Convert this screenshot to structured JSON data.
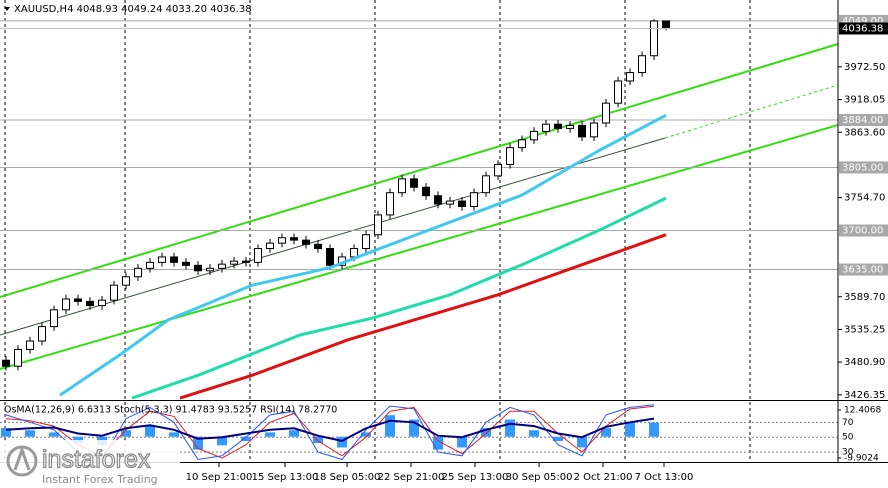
{
  "chart_data": [
    {
      "type": "candlestick",
      "title": "XAUUSD,H4  4048.93 4049.24 4033.20 4036.38",
      "xlim": [
        -0.5,
        69.33
      ],
      "xticks": [
        {
          "value": 17.75,
          "label": "10 Sep 21:00"
        },
        {
          "value": 23.25,
          "label": "15 Sep 13:00"
        },
        {
          "value": 28.42,
          "label": "18 Sep 05:00"
        },
        {
          "value": 33.75,
          "label": "22 Sep 21:00"
        },
        {
          "value": 39.08,
          "label": "25 Sep 13:00"
        },
        {
          "value": 44.42,
          "label": "30 Sep 05:00"
        },
        {
          "value": 49.75,
          "label": "2 Oct 21:00"
        },
        {
          "value": 54.83,
          "label": "7 Oct 13:00"
        }
      ],
      "ylim": [
        3417.8,
        4083.8
      ],
      "yticks": [
        {
          "value": 3972.5,
          "label": "3972.50"
        },
        3918.05,
        {
          "value": 3863.6,
          "label": "3863.60"
        },
        {
          "value": 3754.7,
          "label": "3754.70"
        },
        {
          "value": 3589.7,
          "label": "3589.70"
        },
        3535.25,
        {
          "value": 3480.9,
          "label": "3480.90"
        },
        3426.35
      ],
      "levels": [
        {
          "value": 4049,
          "label": "4049.00"
        },
        {
          "value": 3884,
          "label": "3884.00"
        },
        {
          "value": 3805,
          "label": "3805.00"
        },
        {
          "value": 3700,
          "label": "3700.00"
        },
        {
          "value": 3635,
          "label": "3635.00"
        }
      ],
      "level_color": "#a8a8a8",
      "current_price": 4036.38,
      "up_color": "#ffffff",
      "down_color": "#000000",
      "open": [
        3484,
        3474,
        3502,
        3516,
        3540,
        3568,
        3586,
        3582,
        3575,
        3584,
        3609,
        3623,
        3637,
        3647,
        3656,
        3647,
        3642,
        3633,
        3637,
        3644,
        3649,
        3647,
        3670,
        3679,
        3688,
        3684,
        3677,
        3670,
        3642,
        3656,
        3670,
        3693,
        3726,
        3763,
        3786,
        3772,
        3758,
        3744,
        3749,
        3740,
        3763,
        3791,
        3810,
        3838,
        3851,
        3865,
        3877,
        3870,
        3875,
        3856,
        3879,
        3912,
        3949,
        3963,
        3991,
        4048.93
      ],
      "high": [
        3491,
        3509,
        3523,
        3547,
        3575,
        3593,
        3593,
        3589,
        3591,
        3616,
        3630,
        3644,
        3654,
        3663,
        3663,
        3654,
        3649,
        3644,
        3651,
        3656,
        3656,
        3677,
        3686,
        3695,
        3695,
        3691,
        3684,
        3677,
        3663,
        3677,
        3700,
        3733,
        3770,
        3793,
        3793,
        3779,
        3765,
        3756,
        3756,
        3770,
        3798,
        3817,
        3845,
        3858,
        3872,
        3884,
        3884,
        3882,
        3882,
        3886,
        3919,
        3956,
        3970,
        3998,
        4052,
        4049.24
      ],
      "low": [
        3467,
        3467,
        3495,
        3509,
        3533,
        3561,
        3575,
        3568,
        3568,
        3577,
        3602,
        3616,
        3630,
        3640,
        3640,
        3635,
        3626,
        3626,
        3630,
        3637,
        3640,
        3640,
        3663,
        3672,
        3677,
        3670,
        3663,
        3635,
        3635,
        3649,
        3663,
        3686,
        3719,
        3756,
        3765,
        3751,
        3737,
        3737,
        3733,
        3733,
        3756,
        3784,
        3803,
        3831,
        3844,
        3858,
        3863,
        3863,
        3849,
        3849,
        3872,
        3905,
        3942,
        3956,
        3984,
        4033.2
      ],
      "close": [
        3474,
        3502,
        3516,
        3540,
        3568,
        3586,
        3582,
        3575,
        3584,
        3609,
        3623,
        3637,
        3647,
        3656,
        3647,
        3642,
        3633,
        3637,
        3644,
        3649,
        3647,
        3670,
        3679,
        3688,
        3684,
        3677,
        3670,
        3642,
        3656,
        3670,
        3693,
        3726,
        3763,
        3786,
        3772,
        3758,
        3744,
        3749,
        3740,
        3763,
        3791,
        3810,
        3838,
        3851,
        3865,
        3877,
        3870,
        3875,
        3856,
        3879,
        3912,
        3949,
        3963,
        3991,
        4048.93,
        4036.38
      ],
      "moving_averages": [
        {
          "color": "#40c8f0",
          "x": [
            4.5,
            9.5,
            13.5,
            20.5,
            27,
            33,
            37,
            43,
            49.5,
            55
          ],
          "values": [
            3426,
            3493,
            3551,
            3609,
            3638,
            3684,
            3714,
            3759,
            3834,
            3892
          ]
        },
        {
          "color": "#20dca8",
          "x": [
            10.5,
            16,
            24.5,
            30.5,
            37,
            43,
            49.5,
            55
          ],
          "values": [
            3421,
            3459,
            3526,
            3554,
            3593,
            3643,
            3701,
            3754
          ]
        },
        {
          "color": "#e01010",
          "x": [
            14.5,
            20.5,
            28.5,
            34.5,
            41,
            48,
            55
          ],
          "values": [
            3421,
            3459,
            3518,
            3554,
            3593,
            3643,
            3693
          ]
        }
      ],
      "trendlines": [
        {
          "color": "#33dd11",
          "style": "solid",
          "x": [
            -0.5,
            69.33
          ],
          "values": [
            3589.3,
            4010.5
          ]
        },
        {
          "color": "#33dd11",
          "style": "solid",
          "x": [
            -0.5,
            69.33
          ],
          "values": [
            3469.4,
            3875.7
          ]
        },
        {
          "color": "#2f4f2f",
          "style": "solid",
          "x": [
            -0.5,
            54.92
          ],
          "values": [
            3526,
            3854
          ]
        },
        {
          "color": "#33dd11",
          "style": "dashed",
          "x": [
            54.92,
            69.33
          ],
          "values": [
            3854,
            3942.3
          ]
        }
      ]
    },
    {
      "type": "oscillator",
      "title": "OsMA(12,26,9) 6.6313 Stoch(5,3,3) 91.4783 93.5257 RSI(14) 78.2770",
      "xlim": [
        -0.5,
        69.33
      ],
      "ylim": [
        16.7,
        100
      ],
      "yticks": [
        30,
        50,
        70
      ],
      "y2lim": [
        -11.76,
        17.06
      ],
      "y2ticks": [
        12.4068,
        -9.9024
      ],
      "series": [
        {
          "type": "bar",
          "axis": "y2",
          "color": "#3399ff",
          "x": [
            0,
            2,
            4,
            6,
            8,
            10,
            12,
            14,
            16,
            18,
            20,
            22,
            24,
            26,
            28,
            30,
            32,
            34,
            36,
            38,
            40,
            42,
            44,
            46,
            48,
            50,
            52,
            54
          ],
          "values": [
            4,
            3,
            2,
            -3,
            -4,
            3,
            5,
            2,
            -6,
            -4,
            -2,
            2,
            3,
            -3,
            -5,
            2,
            10,
            8,
            -6,
            -5,
            4,
            8,
            3,
            -2,
            -5,
            4,
            7,
            6.6
          ]
        },
        {
          "type": "line",
          "color": "#e02020",
          "x": [
            0,
            2,
            4,
            6,
            8,
            10,
            12,
            14,
            16,
            18,
            20,
            22,
            24,
            26,
            28,
            30,
            32,
            34,
            36,
            38,
            40,
            42,
            44,
            46,
            48,
            50,
            52,
            54
          ],
          "values": [
            75,
            72,
            65,
            40,
            25,
            60,
            85,
            78,
            35,
            22,
            40,
            70,
            82,
            45,
            25,
            50,
            85,
            90,
            45,
            28,
            55,
            85,
            85,
            55,
            30,
            65,
            88,
            91.5
          ]
        },
        {
          "type": "line",
          "color": "#3050ff",
          "x": [
            0,
            2,
            4,
            6,
            8,
            10,
            12,
            14,
            16,
            18,
            20,
            22,
            24,
            26,
            28,
            30,
            32,
            34,
            36,
            38,
            40,
            42,
            44,
            46,
            48,
            50,
            52,
            54
          ],
          "values": [
            80,
            70,
            60,
            30,
            20,
            75,
            90,
            70,
            20,
            25,
            50,
            80,
            85,
            30,
            20,
            60,
            92,
            88,
            30,
            25,
            70,
            90,
            80,
            40,
            25,
            80,
            90,
            93.5
          ]
        },
        {
          "type": "line",
          "color": "#000080",
          "x": [
            0,
            2,
            4,
            6,
            8,
            10,
            12,
            14,
            16,
            18,
            20,
            22,
            24,
            26,
            28,
            30,
            32,
            34,
            36,
            38,
            40,
            42,
            44,
            46,
            48,
            50,
            52,
            54
          ],
          "values": [
            60,
            62,
            63,
            55,
            52,
            62,
            66,
            60,
            48,
            50,
            55,
            60,
            62,
            52,
            45,
            62,
            72,
            70,
            52,
            50,
            60,
            68,
            65,
            55,
            50,
            64,
            70,
            75
          ]
        }
      ]
    }
  ],
  "watermark": {
    "brand": "instaforex",
    "tagline": "Instant Forex Trading"
  }
}
